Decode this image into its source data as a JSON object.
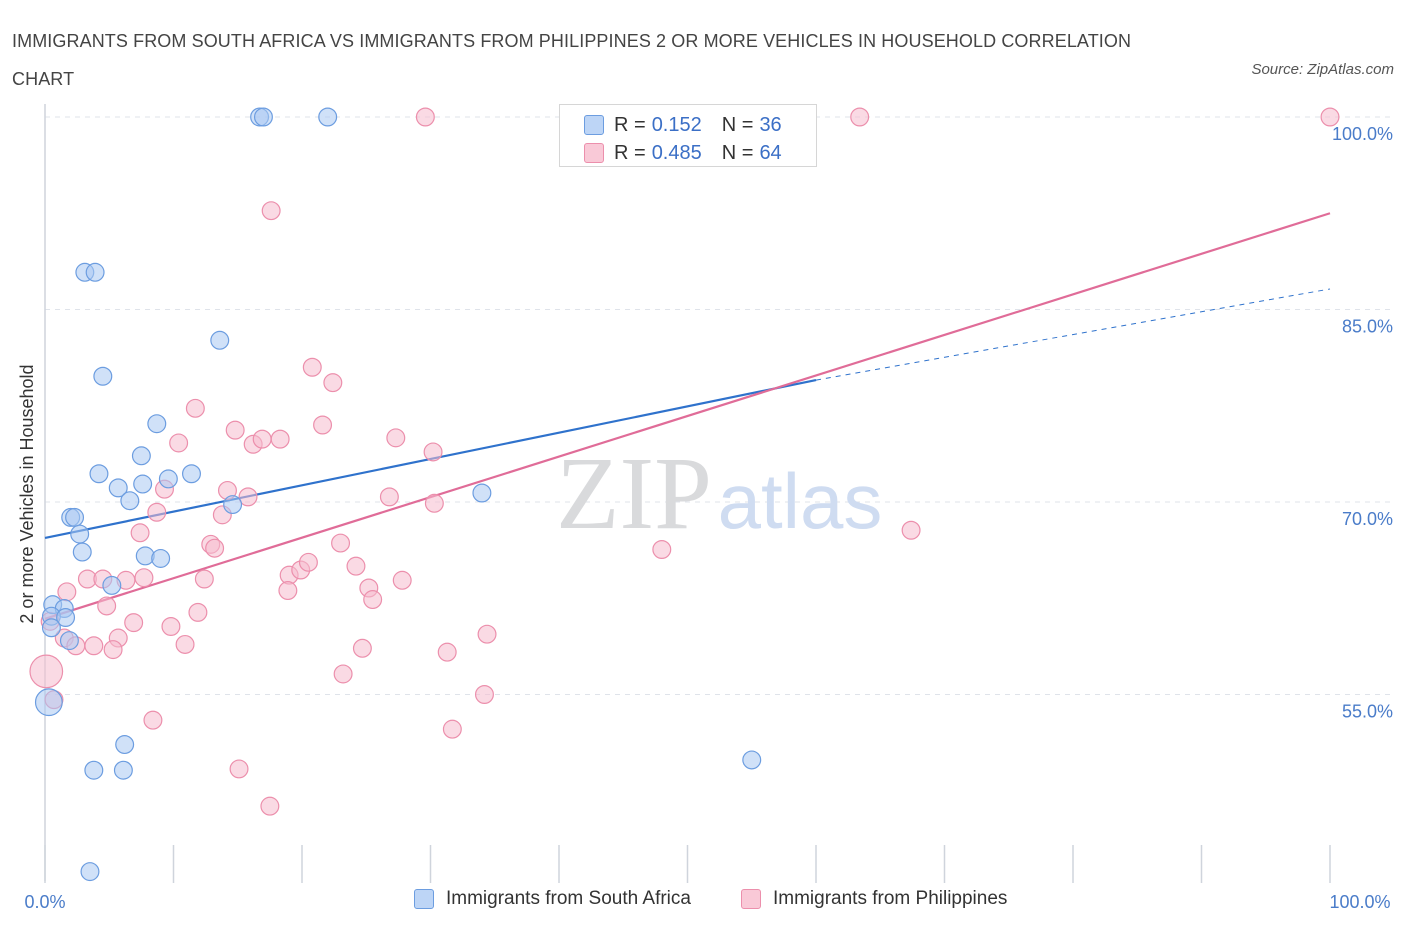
{
  "title": "IMMIGRANTS FROM SOUTH AFRICA VS IMMIGRANTS FROM PHILIPPINES 2 OR MORE VEHICLES IN HOUSEHOLD CORRELATION CHART",
  "source": "Source: ZipAtlas.com",
  "watermark": {
    "zip": "ZIP",
    "atlas": "atlas"
  },
  "colors": {
    "blue_fill": "#a9c8f2",
    "blue_stroke": "#6c9de0",
    "blue_line": "#2f72cc",
    "pink_fill": "#f6bccd",
    "pink_stroke": "#ec8fac",
    "pink_line": "#e06c98",
    "grid": "#dfe3ea",
    "axis_text": "#4a7cc9"
  },
  "legend": [
    {
      "r_label": "R =",
      "r_value": "0.152",
      "n_label": "N =",
      "n_value": "36"
    },
    {
      "r_label": "R =",
      "r_value": "0.485",
      "n_label": "N =",
      "n_value": "64"
    }
  ],
  "bottom_legend": [
    {
      "label": "Immigrants from South Africa"
    },
    {
      "label": "Immigrants from Philippines"
    }
  ],
  "chart_data": {
    "type": "scatter",
    "title": "IMMIGRANTS FROM SOUTH AFRICA VS IMMIGRANTS FROM PHILIPPINES 2 OR MORE VEHICLES IN HOUSEHOLD CORRELATION CHART",
    "xlabel": "",
    "ylabel": "2 or more Vehicles in Household",
    "xlim": [
      0,
      100
    ],
    "ylim": [
      40,
      100
    ],
    "x_tick_labels": [
      "0.0%",
      "100.0%"
    ],
    "y_ticks": [
      {
        "value": 100,
        "label": "100.0%"
      },
      {
        "value": 85,
        "label": "85.0%"
      },
      {
        "value": 70,
        "label": "70.0%"
      },
      {
        "value": 55,
        "label": "55.0%"
      }
    ],
    "grid": true,
    "series": [
      {
        "name": "Immigrants from South Africa",
        "r": 0.152,
        "n": 36,
        "trend": {
          "x0": 0,
          "y0": 67.2,
          "x1": 60,
          "y1": 79.5,
          "dashed_to_x": 100,
          "dashed_to_y": 86.6
        },
        "points": [
          [
            16.7,
            100,
            12
          ],
          [
            17.0,
            100,
            12
          ],
          [
            22.0,
            100,
            12
          ],
          [
            3.1,
            87.9,
            12
          ],
          [
            3.9,
            87.9,
            12
          ],
          [
            13.6,
            82.6,
            12
          ],
          [
            4.5,
            79.8,
            12
          ],
          [
            8.7,
            76.1,
            12
          ],
          [
            7.5,
            73.6,
            12
          ],
          [
            4.2,
            72.2,
            12
          ],
          [
            5.7,
            71.1,
            12
          ],
          [
            7.6,
            71.4,
            12
          ],
          [
            9.6,
            71.8,
            12
          ],
          [
            11.4,
            72.2,
            12
          ],
          [
            14.6,
            69.8,
            12
          ],
          [
            6.6,
            70.1,
            12
          ],
          [
            2.0,
            68.8,
            12
          ],
          [
            2.3,
            68.8,
            12
          ],
          [
            2.7,
            67.5,
            12
          ],
          [
            2.9,
            66.1,
            12
          ],
          [
            7.8,
            65.8,
            12
          ],
          [
            9.0,
            65.6,
            12
          ],
          [
            5.2,
            63.5,
            12
          ],
          [
            0.6,
            62.0,
            12
          ],
          [
            1.5,
            61.7,
            12
          ],
          [
            0.5,
            61.1,
            12
          ],
          [
            1.6,
            61.0,
            12
          ],
          [
            0.5,
            60.2,
            12
          ],
          [
            1.9,
            59.2,
            12
          ],
          [
            0.3,
            54.4,
            18
          ],
          [
            6.2,
            51.1,
            12
          ],
          [
            3.8,
            49.1,
            12
          ],
          [
            6.1,
            49.1,
            12
          ],
          [
            34.0,
            70.7,
            12
          ],
          [
            55.0,
            49.9,
            12
          ],
          [
            3.5,
            41.2,
            12
          ]
        ]
      },
      {
        "name": "Immigrants from Philippines",
        "r": 0.485,
        "n": 64,
        "trend": {
          "x0": 0,
          "y0": 60.9,
          "x1": 100,
          "y1": 92.5
        },
        "points": [
          [
            29.6,
            100,
            12
          ],
          [
            63.4,
            100,
            12
          ],
          [
            100,
            100,
            12
          ],
          [
            17.6,
            92.7,
            12
          ],
          [
            20.8,
            80.5,
            12
          ],
          [
            22.4,
            79.3,
            12
          ],
          [
            11.7,
            77.3,
            12
          ],
          [
            21.6,
            76.0,
            12
          ],
          [
            14.8,
            75.6,
            12
          ],
          [
            10.4,
            74.6,
            12
          ],
          [
            16.2,
            74.5,
            12
          ],
          [
            16.9,
            74.9,
            12
          ],
          [
            18.3,
            74.9,
            12
          ],
          [
            27.3,
            75.0,
            12
          ],
          [
            30.2,
            73.9,
            12
          ],
          [
            9.3,
            71.0,
            12
          ],
          [
            14.2,
            70.9,
            12
          ],
          [
            15.8,
            70.4,
            12
          ],
          [
            26.8,
            70.4,
            12
          ],
          [
            30.3,
            69.9,
            12
          ],
          [
            8.7,
            69.2,
            12
          ],
          [
            13.8,
            69.0,
            12
          ],
          [
            7.4,
            67.6,
            12
          ],
          [
            12.9,
            66.7,
            12
          ],
          [
            13.2,
            66.4,
            12
          ],
          [
            23.0,
            66.8,
            12
          ],
          [
            48.0,
            66.3,
            12
          ],
          [
            67.4,
            67.8,
            12
          ],
          [
            19.0,
            64.3,
            12
          ],
          [
            19.9,
            64.7,
            12
          ],
          [
            20.5,
            65.3,
            12
          ],
          [
            24.2,
            65.0,
            12
          ],
          [
            3.3,
            64.0,
            12
          ],
          [
            4.5,
            64.0,
            12
          ],
          [
            6.3,
            63.9,
            12
          ],
          [
            7.7,
            64.1,
            12
          ],
          [
            12.4,
            64.0,
            12
          ],
          [
            18.9,
            63.1,
            12
          ],
          [
            25.2,
            63.3,
            12
          ],
          [
            25.5,
            62.4,
            12
          ],
          [
            27.8,
            63.9,
            12
          ],
          [
            1.7,
            63.0,
            12
          ],
          [
            4.8,
            61.9,
            12
          ],
          [
            11.9,
            61.4,
            12
          ],
          [
            0.4,
            60.7,
            12
          ],
          [
            6.9,
            60.6,
            12
          ],
          [
            9.8,
            60.3,
            12
          ],
          [
            1.5,
            59.4,
            12
          ],
          [
            5.7,
            59.4,
            12
          ],
          [
            2.4,
            58.8,
            12
          ],
          [
            3.8,
            58.8,
            12
          ],
          [
            5.3,
            58.5,
            12
          ],
          [
            10.9,
            58.9,
            12
          ],
          [
            24.7,
            58.6,
            12
          ],
          [
            31.3,
            58.3,
            12
          ],
          [
            34.4,
            59.7,
            12
          ],
          [
            0.1,
            56.8,
            22
          ],
          [
            23.2,
            56.6,
            12
          ],
          [
            34.2,
            55.0,
            12
          ],
          [
            0.7,
            54.6,
            12
          ],
          [
            8.4,
            53.0,
            12
          ],
          [
            31.7,
            52.3,
            12
          ],
          [
            15.1,
            49.2,
            12
          ],
          [
            17.5,
            46.3,
            12
          ]
        ]
      }
    ]
  }
}
